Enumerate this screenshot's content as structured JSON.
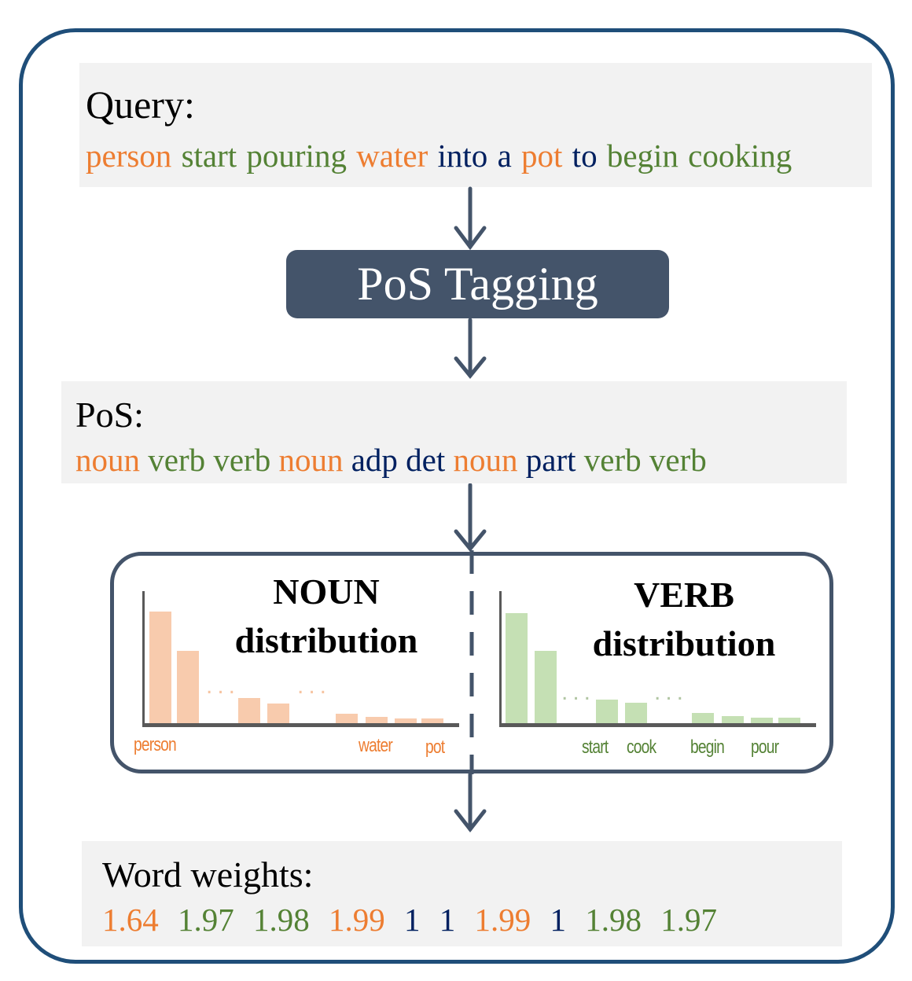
{
  "colors": {
    "noun": "#ED7D31",
    "verb": "#548235",
    "other": "#002060",
    "frame": "#1F4E79",
    "box": "#44546A"
  },
  "query": {
    "title": "Query:",
    "words": [
      {
        "text": "person",
        "pos": "noun"
      },
      {
        "text": "start",
        "pos": "verb"
      },
      {
        "text": "pouring",
        "pos": "verb"
      },
      {
        "text": "water",
        "pos": "noun"
      },
      {
        "text": "into",
        "pos": "other"
      },
      {
        "text": "a",
        "pos": "other"
      },
      {
        "text": "pot",
        "pos": "noun"
      },
      {
        "text": "to",
        "pos": "other"
      },
      {
        "text": "begin",
        "pos": "verb"
      },
      {
        "text": "cooking",
        "pos": "verb"
      }
    ]
  },
  "tagger": {
    "label": "PoS Tagging"
  },
  "pos": {
    "title": "PoS:",
    "tags": [
      {
        "text": "noun",
        "pos": "noun"
      },
      {
        "text": "verb",
        "pos": "verb"
      },
      {
        "text": "verb",
        "pos": "verb"
      },
      {
        "text": "noun",
        "pos": "noun"
      },
      {
        "text": "adp",
        "pos": "other"
      },
      {
        "text": "det",
        "pos": "other"
      },
      {
        "text": "noun",
        "pos": "noun"
      },
      {
        "text": "part",
        "pos": "other"
      },
      {
        "text": "verb",
        "pos": "verb"
      },
      {
        "text": "verb",
        "pos": "verb"
      }
    ]
  },
  "noun_dist": {
    "title_1": "NOUN",
    "title_2": "distribution",
    "labels": [
      "person",
      "water",
      "pot"
    ],
    "ellipsis": "..."
  },
  "verb_dist": {
    "title_1": "VERB",
    "title_2": "distribution",
    "labels": [
      "start",
      "cook",
      "begin",
      "pour"
    ],
    "ellipsis": "..."
  },
  "weights": {
    "title": "Word weights:",
    "values": [
      {
        "text": "1.64",
        "pos": "noun"
      },
      {
        "text": "1.97",
        "pos": "verb"
      },
      {
        "text": "1.98",
        "pos": "verb"
      },
      {
        "text": "1.99",
        "pos": "noun"
      },
      {
        "text": "1",
        "pos": "other"
      },
      {
        "text": "1",
        "pos": "other"
      },
      {
        "text": "1.99",
        "pos": "noun"
      },
      {
        "text": "1",
        "pos": "other"
      },
      {
        "text": "1.98",
        "pos": "verb"
      },
      {
        "text": "1.97",
        "pos": "verb"
      }
    ]
  }
}
